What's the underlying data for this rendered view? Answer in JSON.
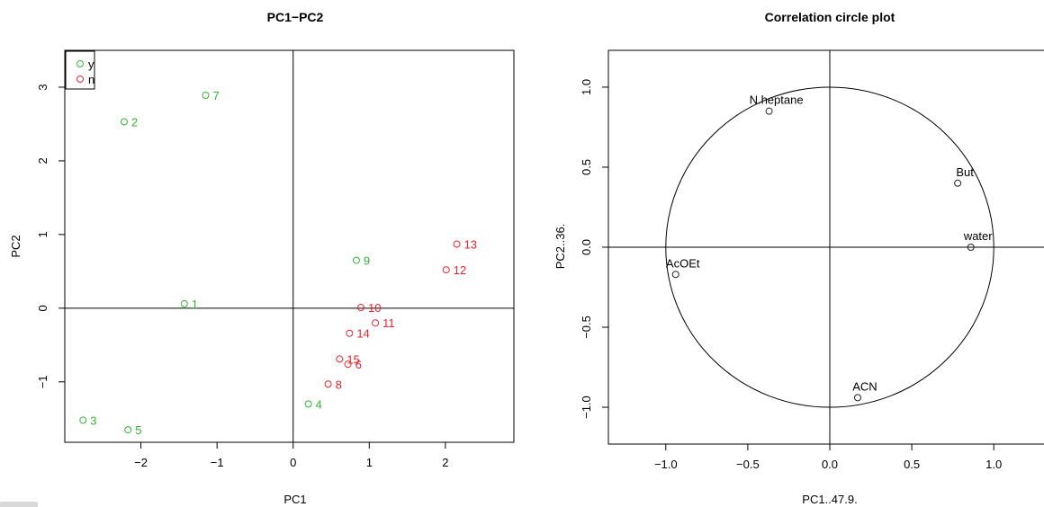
{
  "chart_data": [
    {
      "type": "scatter",
      "title": "PC1−PC2",
      "xlabel": "PC1",
      "ylabel": "PC2",
      "xlim": [
        -3,
        2.9
      ],
      "ylim": [
        -1.82,
        3.5
      ],
      "xticks": [
        -2,
        -1,
        0,
        1,
        2
      ],
      "yticks": [
        -1,
        0,
        1,
        2,
        3
      ],
      "grid": false,
      "reference_lines": {
        "x": 0,
        "y": 0
      },
      "legend": {
        "position": "top-left",
        "entries": [
          {
            "label": "y",
            "color": "#33b233"
          },
          {
            "label": "n",
            "color": "#e8242c"
          }
        ]
      },
      "series": [
        {
          "name": "y",
          "color": "#33b233",
          "points": [
            {
              "label": "1",
              "x": -1.43,
              "y": 0.06
            },
            {
              "label": "2",
              "x": -2.22,
              "y": 2.53
            },
            {
              "label": "3",
              "x": -2.76,
              "y": -1.52
            },
            {
              "label": "4",
              "x": 0.2,
              "y": -1.3
            },
            {
              "label": "5",
              "x": -2.17,
              "y": -1.65
            },
            {
              "label": "7",
              "x": -1.15,
              "y": 2.89
            },
            {
              "label": "9",
              "x": 0.83,
              "y": 0.65
            }
          ]
        },
        {
          "name": "n",
          "color": "#e8242c",
          "points": [
            {
              "label": "6",
              "x": 0.72,
              "y": -0.76
            },
            {
              "label": "8",
              "x": 0.46,
              "y": -1.03
            },
            {
              "label": "10",
              "x": 0.89,
              "y": 0.01
            },
            {
              "label": "11",
              "x": 1.08,
              "y": -0.2
            },
            {
              "label": "12",
              "x": 2.01,
              "y": 0.52
            },
            {
              "label": "13",
              "x": 2.15,
              "y": 0.87
            },
            {
              "label": "14",
              "x": 0.74,
              "y": -0.34
            },
            {
              "label": "15",
              "x": 0.61,
              "y": -0.69
            }
          ]
        }
      ]
    },
    {
      "type": "scatter",
      "title": "Correlation circle plot",
      "xlabel": "PC1..47.9.",
      "ylabel": "PC2..36.",
      "xlim": [
        -1.35,
        1.35
      ],
      "ylim": [
        -1.23,
        1.23
      ],
      "xticks": [
        -1.0,
        -0.5,
        0.0,
        0.5,
        1.0
      ],
      "xtick_labels": [
        "−1.0",
        "−0.5",
        "0.0",
        "0.5",
        "1.0"
      ],
      "yticks": [
        -1.0,
        -0.5,
        0.0,
        0.5,
        1.0
      ],
      "ytick_labels": [
        "−1.0",
        "−0.5",
        "0.0",
        "0.5",
        "1.0"
      ],
      "grid": false,
      "reference_lines": {
        "x": 0,
        "y": 0
      },
      "unit_circle": true,
      "series": [
        {
          "color": "#222222",
          "points": [
            {
              "label": "N.heptane",
              "x": -0.37,
              "y": 0.85
            },
            {
              "label": "But",
              "x": 0.78,
              "y": 0.4
            },
            {
              "label": "water",
              "x": 0.86,
              "y": 0.0
            },
            {
              "label": "AcOEt",
              "x": -0.94,
              "y": -0.17
            },
            {
              "label": "ACN",
              "x": 0.17,
              "y": -0.94
            }
          ]
        }
      ]
    }
  ]
}
